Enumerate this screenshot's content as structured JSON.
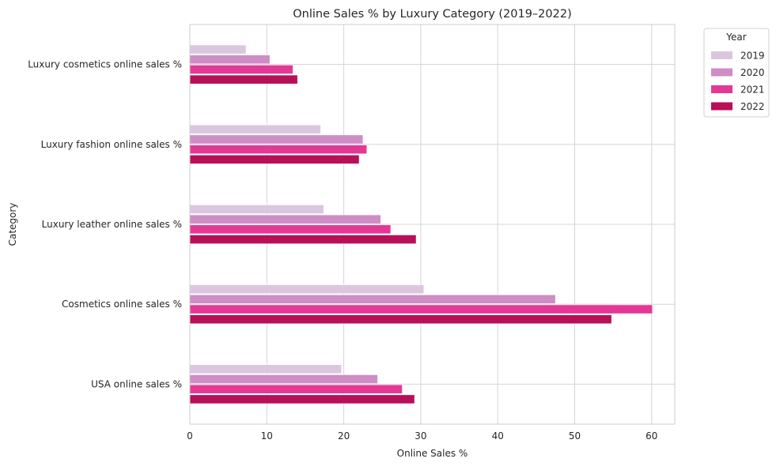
{
  "chart_data": {
    "type": "bar",
    "orientation": "horizontal",
    "title": "Online Sales % by Luxury Category (2019–2022)",
    "xlabel": "Online Sales %",
    "ylabel": "Category",
    "xlim": [
      0,
      63
    ],
    "xticks": [
      0,
      10,
      20,
      30,
      40,
      50,
      60
    ],
    "grid": true,
    "legend_title": "Year",
    "legend_position": "outside-top-right",
    "categories": [
      "Luxury cosmetics online sales %",
      "Luxury fashion online sales %",
      "Luxury leather online sales %",
      "Cosmetics online sales %",
      "USA online sales %"
    ],
    "series": [
      {
        "name": "2019",
        "color": "#dcc6df",
        "values": [
          7.3,
          17.0,
          17.4,
          30.4,
          19.7
        ]
      },
      {
        "name": "2020",
        "color": "#ce8dc4",
        "values": [
          10.4,
          22.5,
          24.8,
          47.5,
          24.4
        ]
      },
      {
        "name": "2021",
        "color": "#e43895",
        "values": [
          13.4,
          23.0,
          26.1,
          60.1,
          27.6
        ]
      },
      {
        "name": "2022",
        "color": "#b80f57",
        "values": [
          14.0,
          22.0,
          29.4,
          54.8,
          29.2
        ]
      }
    ]
  }
}
